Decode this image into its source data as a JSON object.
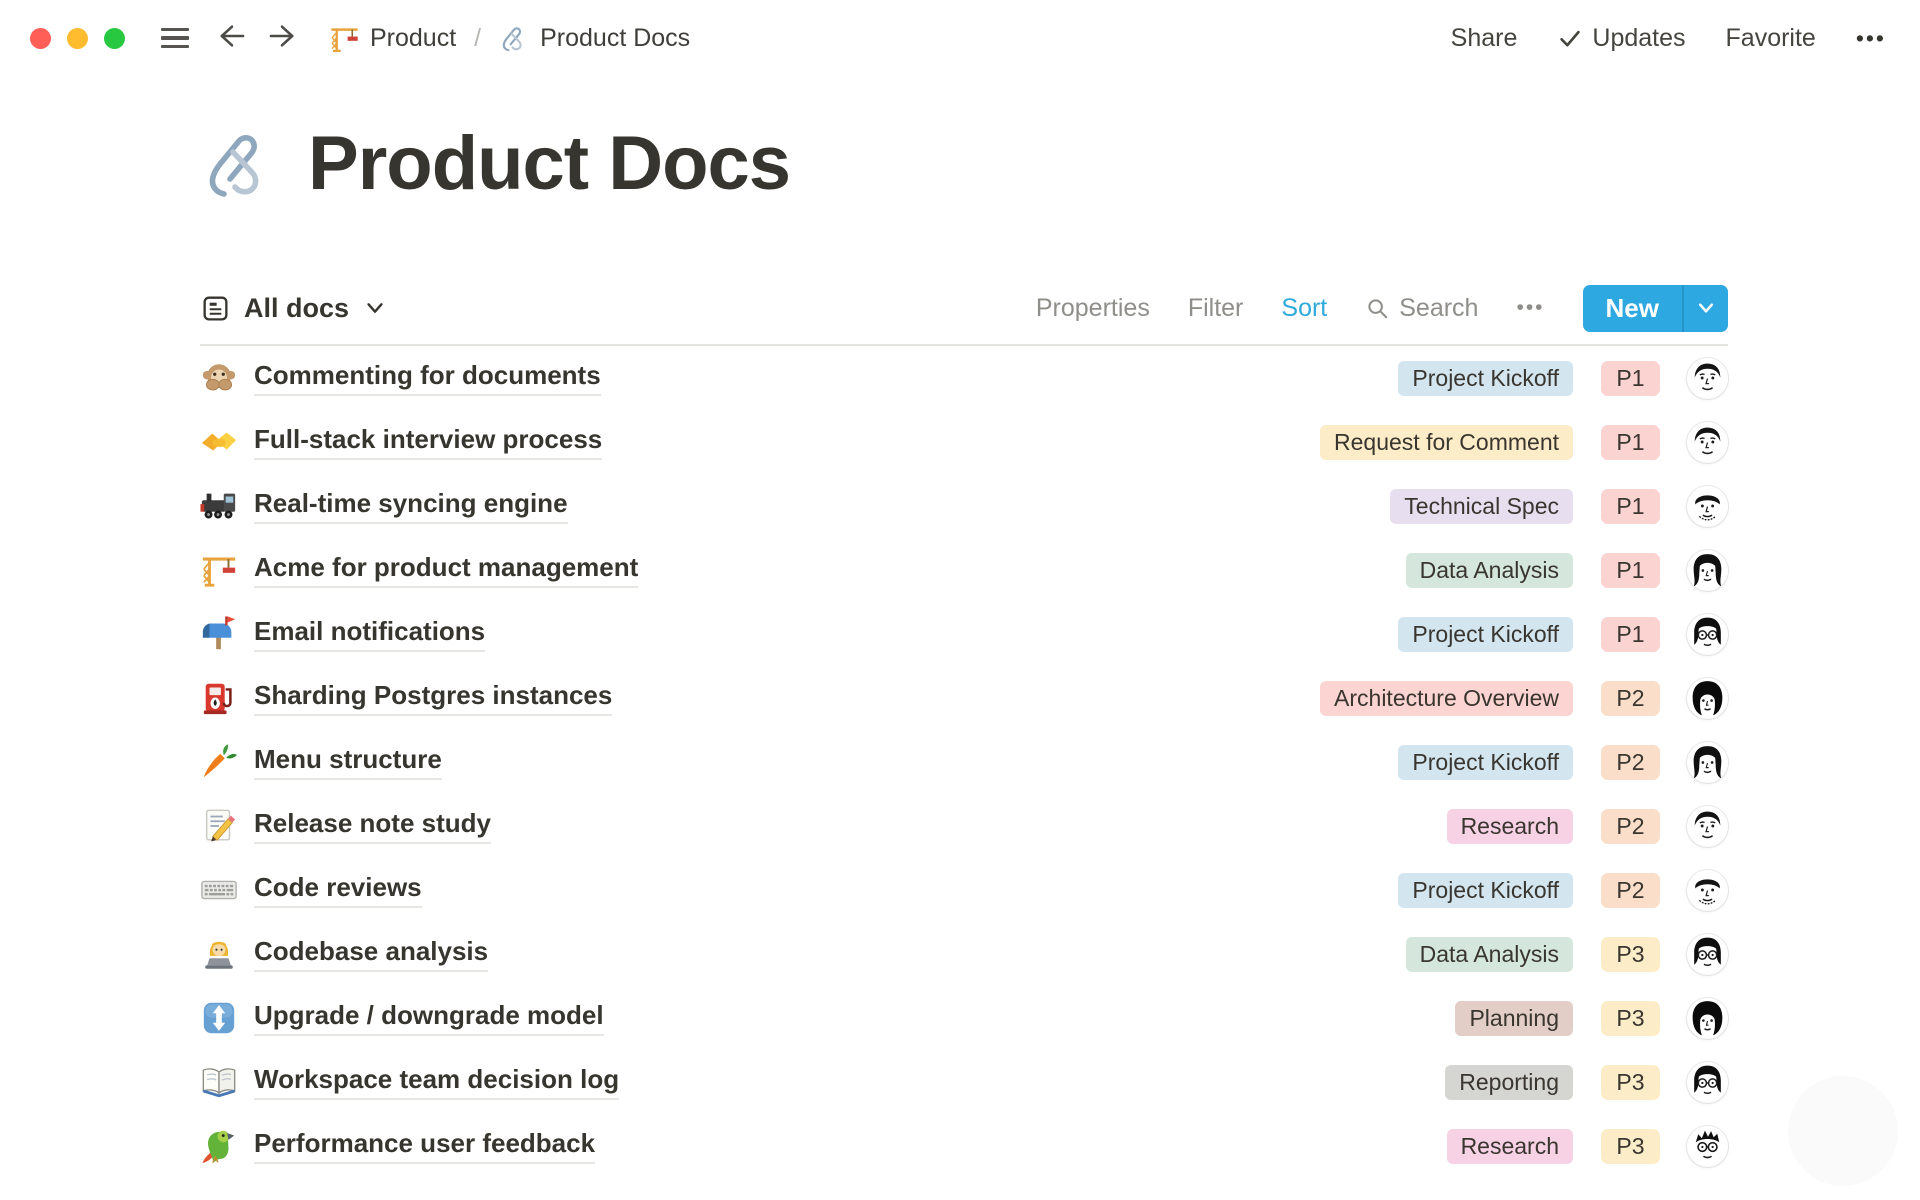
{
  "window": {
    "controls": [
      "close",
      "minimize",
      "zoom"
    ]
  },
  "topbar": {
    "breadcrumb": {
      "items": [
        {
          "icon": "construction-crane",
          "label": "Product"
        },
        {
          "icon": "linked-paperclips",
          "label": "Product Docs"
        }
      ],
      "separator": "/"
    },
    "actions": {
      "share": "Share",
      "updates": "Updates",
      "favorite": "Favorite",
      "more": "•••"
    }
  },
  "page": {
    "icon": "linked-paperclips",
    "title": "Product Docs"
  },
  "toolbar": {
    "view_label": "All docs",
    "properties": "Properties",
    "filter": "Filter",
    "sort": "Sort",
    "sort_active": true,
    "search": "Search",
    "more": "•••",
    "new_button": "New"
  },
  "colors": {
    "accent_blue": "#2eaadc",
    "new_button_blue": "#2ea8e0",
    "priority": {
      "P1": "#fbd3d1",
      "P2": "#fadec9",
      "P3": "#fdecc8"
    },
    "tags": {
      "Project Kickoff": "#d3e5ef",
      "Request for Comment": "#fdecc8",
      "Technical Spec": "#e7def0",
      "Data Analysis": "#d5e7dc",
      "Architecture Overview": "#fcd4d2",
      "Research": "#f7d2e4",
      "Planning": "#e2cec7",
      "Reporting": "#d5d5d2"
    }
  },
  "table": {
    "rows": [
      {
        "icon": "speak-no-evil-monkey",
        "title": "Commenting for documents",
        "tag": "Project Kickoff",
        "priority": "P1",
        "avatar": "man-dark-hair"
      },
      {
        "icon": "handshake",
        "title": "Full-stack interview process",
        "tag": "Request for Comment",
        "priority": "P1",
        "avatar": "man-dark-hair"
      },
      {
        "icon": "locomotive",
        "title": "Real-time syncing engine",
        "tag": "Technical Spec",
        "priority": "P1",
        "avatar": "man-stubble"
      },
      {
        "icon": "construction-crane",
        "title": "Acme for product management",
        "tag": "Data Analysis",
        "priority": "P1",
        "avatar": "woman-long-hair"
      },
      {
        "icon": "open-mailbox",
        "title": "Email notifications",
        "tag": "Project Kickoff",
        "priority": "P1",
        "avatar": "person-glasses"
      },
      {
        "icon": "fuel-pump",
        "title": "Sharding Postgres instances",
        "tag": "Architecture Overview",
        "priority": "P2",
        "avatar": "woman-bob"
      },
      {
        "icon": "carrot",
        "title": "Menu structure",
        "tag": "Project Kickoff",
        "priority": "P2",
        "avatar": "woman-long-hair"
      },
      {
        "icon": "memo",
        "title": "Release note study",
        "tag": "Research",
        "priority": "P2",
        "avatar": "man-dark-hair"
      },
      {
        "icon": "keyboard",
        "title": "Code reviews",
        "tag": "Project Kickoff",
        "priority": "P2",
        "avatar": "man-stubble"
      },
      {
        "icon": "woman-technologist",
        "title": "Codebase analysis",
        "tag": "Data Analysis",
        "priority": "P3",
        "avatar": "person-glasses"
      },
      {
        "icon": "up-down-button",
        "title": "Upgrade / downgrade model",
        "tag": "Planning",
        "priority": "P3",
        "avatar": "woman-bob"
      },
      {
        "icon": "open-book",
        "title": "Workspace team decision log",
        "tag": "Reporting",
        "priority": "P3",
        "avatar": "person-glasses"
      },
      {
        "icon": "parrot",
        "title": "Performance user feedback",
        "tag": "Research",
        "priority": "P3",
        "avatar": "man-glasses-spiky"
      }
    ]
  }
}
